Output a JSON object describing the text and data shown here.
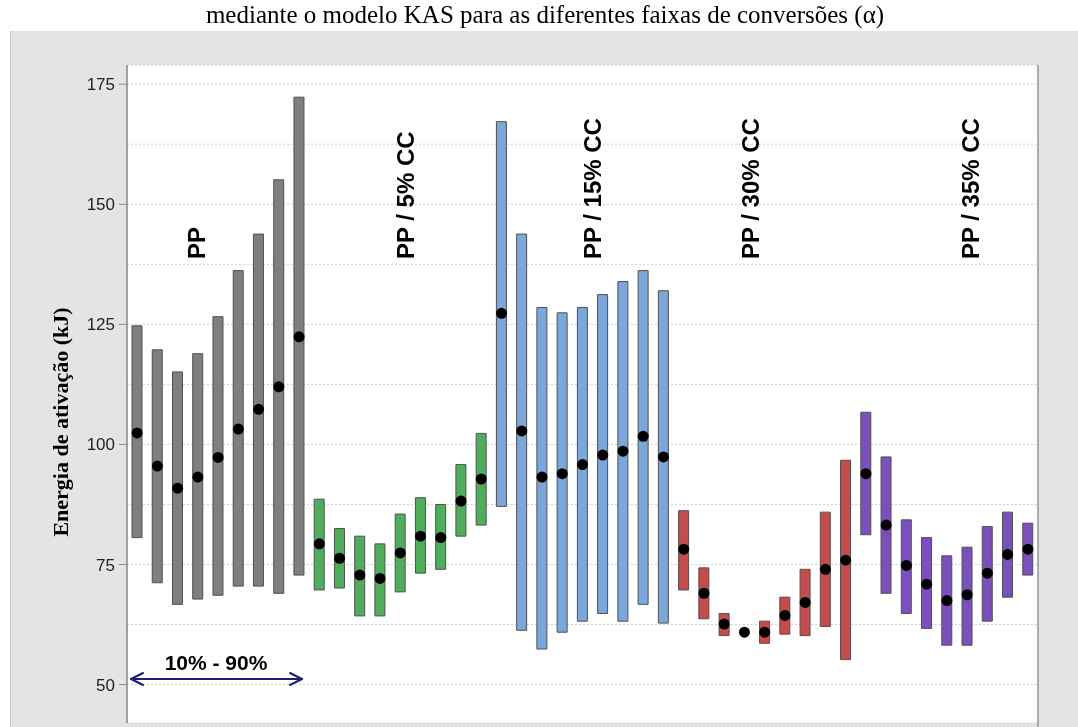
{
  "chart_data": {
    "type": "bar",
    "title": "mediante o modelo KAS para as diferentes faixas de conversões (α)",
    "ylabel": "Energia de ativação (kJ)",
    "annotations": [
      "PP",
      "PP / 5% CC",
      "PP / 15% CC",
      "PP / 30% CC",
      "PP / 35% CC",
      "10% - 90%"
    ],
    "categories": [
      null,
      null,
      null,
      null,
      null,
      null,
      null,
      null,
      null,
      null,
      null,
      null,
      null,
      null,
      null,
      null,
      null,
      null,
      null,
      null,
      null,
      null,
      null,
      null,
      null,
      null,
      null,
      null,
      null,
      null,
      null,
      null,
      null,
      null,
      null,
      null,
      null,
      null,
      null,
      null,
      null,
      null,
      null,
      null,
      null
    ],
    "series": [
      {
        "colors": [
          "#7f7f7f",
          "#7f7f7f",
          "#7f7f7f",
          "#7f7f7f",
          "#7f7f7f",
          "#7f7f7f",
          "#7f7f7f",
          "#7f7f7f",
          "#7f7f7f",
          "#4daf5a",
          "#4daf5a",
          "#4daf5a",
          "#4daf5a",
          "#4daf5a",
          "#4daf5a",
          "#4daf5a",
          "#4daf5a",
          "#4daf5a",
          "#7aa7dc",
          "#7aa7dc",
          "#7aa7dc",
          "#7aa7dc",
          "#7aa7dc",
          "#7aa7dc",
          "#7aa7dc",
          "#7aa7dc",
          "#7aa7dc",
          "#c94a4a",
          "#c94a4a",
          "#c94a4a",
          "#c94a4a",
          "#c94a4a",
          "#c94a4a",
          "#c94a4a",
          "#c94a4a",
          "#c94a4a",
          "#7b4fbf",
          "#7b4fbf",
          "#7b4fbf",
          "#7b4fbf",
          "#7b4fbf",
          "#7b4fbf",
          "#7b4fbf",
          "#7b4fbf",
          "#7b4fbf"
        ],
        "base": [
          80.6,
          71.2,
          66.7,
          67.8,
          68.6,
          70.5,
          70.5,
          69,
          72.8,
          69.7,
          70.1,
          64.3,
          64.3,
          69.3,
          73.2,
          74,
          80.9,
          83.2,
          87.1,
          61.3,
          57.4,
          60.9,
          63.2,
          64.8,
          63.2,
          66.7,
          62.8,
          69.7,
          63.7,
          60.2,
          null,
          58.6,
          60.5,
          60.2,
          62.1,
          55.2,
          81.2,
          69,
          64.8,
          61.7,
          58.2,
          58.2,
          63.2,
          68.2,
          72.8
        ],
        "values": [
          44.1,
          48.5,
          48.4,
          51.1,
          58,
          65.7,
          73.3,
          86.1,
          99.5,
          18.9,
          12.4,
          16.6,
          15,
          16.2,
          15.7,
          13.5,
          14.9,
          19.1,
          80.1,
          82.5,
          71.1,
          66.5,
          65.3,
          66.4,
          70.7,
          69.5,
          69.2,
          16.5,
          10.6,
          4.6,
          null,
          4.6,
          7.7,
          13.8,
          23.8,
          41.5,
          25.5,
          28.4,
          19.5,
          18.9,
          18.6,
          20.4,
          19.7,
          17.7,
          10.8
        ]
      },
      {
        "type": "scatter",
        "color": "#000000",
        "marker": "circle",
        "values": [
          102.4,
          95.5,
          90.9,
          93.2,
          97.3,
          103.2,
          107.3,
          112,
          122.4,
          79.3,
          76.3,
          72.8,
          72.1,
          77.4,
          80.9,
          80.6,
          88.2,
          92.8,
          127.3,
          102.8,
          93.2,
          93.9,
          95.8,
          97.8,
          98.6,
          101.7,
          97.4,
          78.2,
          69,
          62.6,
          60.9,
          60.9,
          64.4,
          67.1,
          74,
          75.9,
          93.9,
          83.2,
          74.8,
          70.9,
          67.5,
          68.7,
          73.2,
          77.1,
          78.2
        ]
      }
    ],
    "ylim": [
      42,
      179
    ],
    "yticks": [
      50,
      {
        "value": 62.5,
        "label": null
      },
      75,
      {
        "value": 87.5,
        "label": null
      },
      100,
      {
        "value": 112.5,
        "label": null
      },
      125,
      {
        "value": 137.5,
        "label": null
      },
      150,
      {
        "value": 162.5,
        "label": null
      },
      175
    ],
    "grid": true,
    "tick_labels": "y"
  }
}
